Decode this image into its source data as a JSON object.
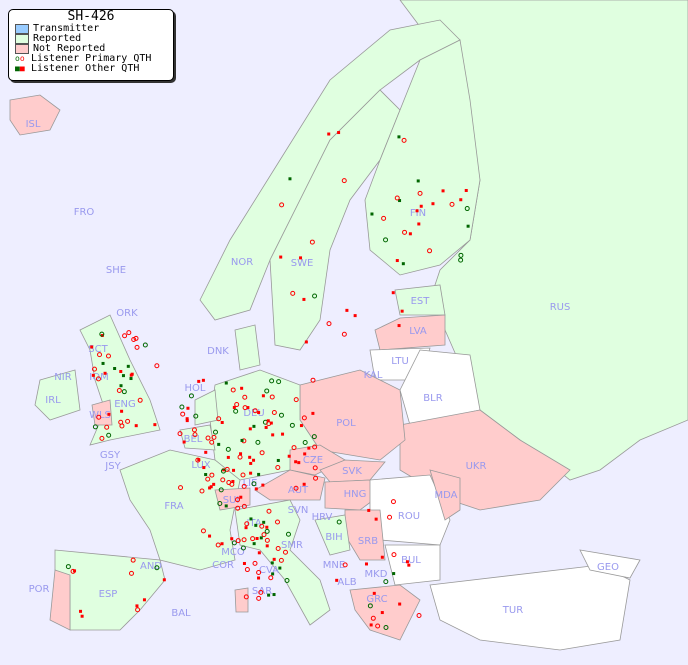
{
  "title": "SH-426",
  "legend": [
    {
      "label": "Transmitter",
      "color": "#99ccff"
    },
    {
      "label": "Reported",
      "color": "#e0ffe0"
    },
    {
      "label": "Not Reported",
      "color": "#ffcccc"
    },
    {
      "label": "Listener Primary QTH",
      "symbol": "ring",
      "colors": [
        "#006600",
        "#ff0000"
      ]
    },
    {
      "label": "Listener Other QTH",
      "symbol": "square",
      "colors": [
        "#006600",
        "#ff0000"
      ]
    }
  ],
  "colors": {
    "sea": "#eeeeff",
    "reported": "#e0ffe0",
    "not_reported": "#ffcccc",
    "no_data": "#ffffff",
    "label": "#9999ee"
  },
  "countries": [
    "ISL",
    "FRO",
    "SHE",
    "ORK",
    "NOR",
    "SWE",
    "FIN",
    "EST",
    "LVA",
    "LTU",
    "RUS",
    "KAL",
    "BLR",
    "DNK",
    "HOL",
    "DEU",
    "POL",
    "UKR",
    "IRL",
    "NIR",
    "SCT",
    "IOM",
    "WLS",
    "ENG",
    "BEL",
    "LUX",
    "GSY",
    "JSY",
    "FRA",
    "SUI",
    "LIE",
    "AUT",
    "CZE",
    "SVK",
    "HNG",
    "MDA",
    "ROU",
    "SVN",
    "HRV",
    "BIH",
    "SRB",
    "ITA",
    "MCO",
    "COR",
    "SMR",
    "CVA",
    "SAR",
    "MNE",
    "ALB",
    "MKD",
    "BUL",
    "GRC",
    "TUR",
    "GEO",
    "AND",
    "ESP",
    "POR",
    "BAL"
  ]
}
